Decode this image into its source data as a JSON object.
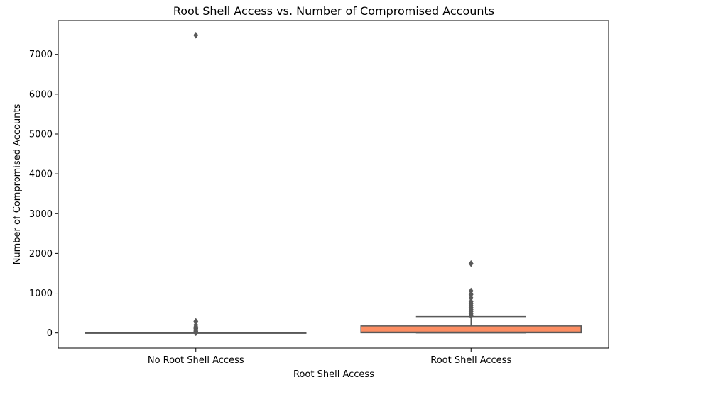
{
  "chart_data": {
    "type": "box",
    "title": "Root Shell Access vs. Number of Compromised Accounts",
    "xlabel": "Root Shell Access",
    "ylabel": "Number of Compromised Accounts",
    "ylim": [
      -380,
      7850
    ],
    "yticks": [
      0,
      1000,
      2000,
      3000,
      4000,
      5000,
      6000,
      7000
    ],
    "yticklabels": [
      "0",
      "1000",
      "2000",
      "3000",
      "4000",
      "5000",
      "6000",
      "7000"
    ],
    "categories": [
      "No Root Shell Access",
      "Root Shell Access"
    ],
    "grid": false,
    "boxes": [
      {
        "category": "No Root Shell Access",
        "color": "#66c2a5",
        "whisker_low": 0,
        "q1": 0,
        "median": 0,
        "q3": 0,
        "whisker_high": 0,
        "outliers": [
          7480,
          290,
          200,
          150,
          110,
          80,
          50,
          30,
          15,
          5
        ]
      },
      {
        "category": "Root Shell Access",
        "color": "#fc8d62",
        "whisker_low": 0,
        "q1": 5,
        "median": 20,
        "q3": 175,
        "whisker_high": 410,
        "outliers": [
          1745,
          1055,
          970,
          880,
          790,
          740,
          690,
          640,
          590,
          540,
          480,
          430
        ]
      }
    ]
  }
}
